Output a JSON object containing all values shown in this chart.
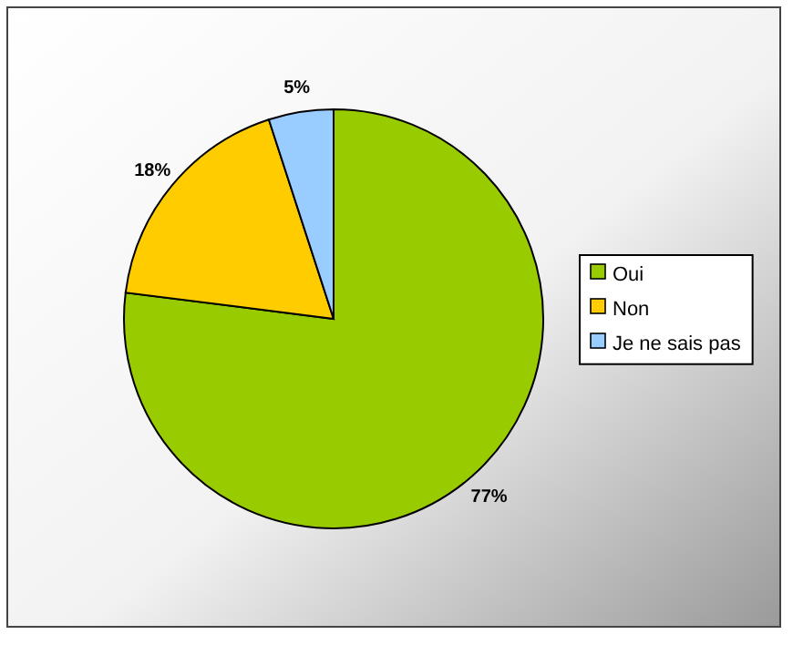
{
  "chart_data": {
    "type": "pie",
    "categories": [
      "Oui",
      "Non",
      "Je ne sais pas"
    ],
    "values": [
      77,
      18,
      5
    ],
    "value_labels": [
      "77%",
      "18%",
      "5%"
    ],
    "colors": [
      "#99cc00",
      "#ffcc00",
      "#99ccff"
    ],
    "legend": "right"
  }
}
